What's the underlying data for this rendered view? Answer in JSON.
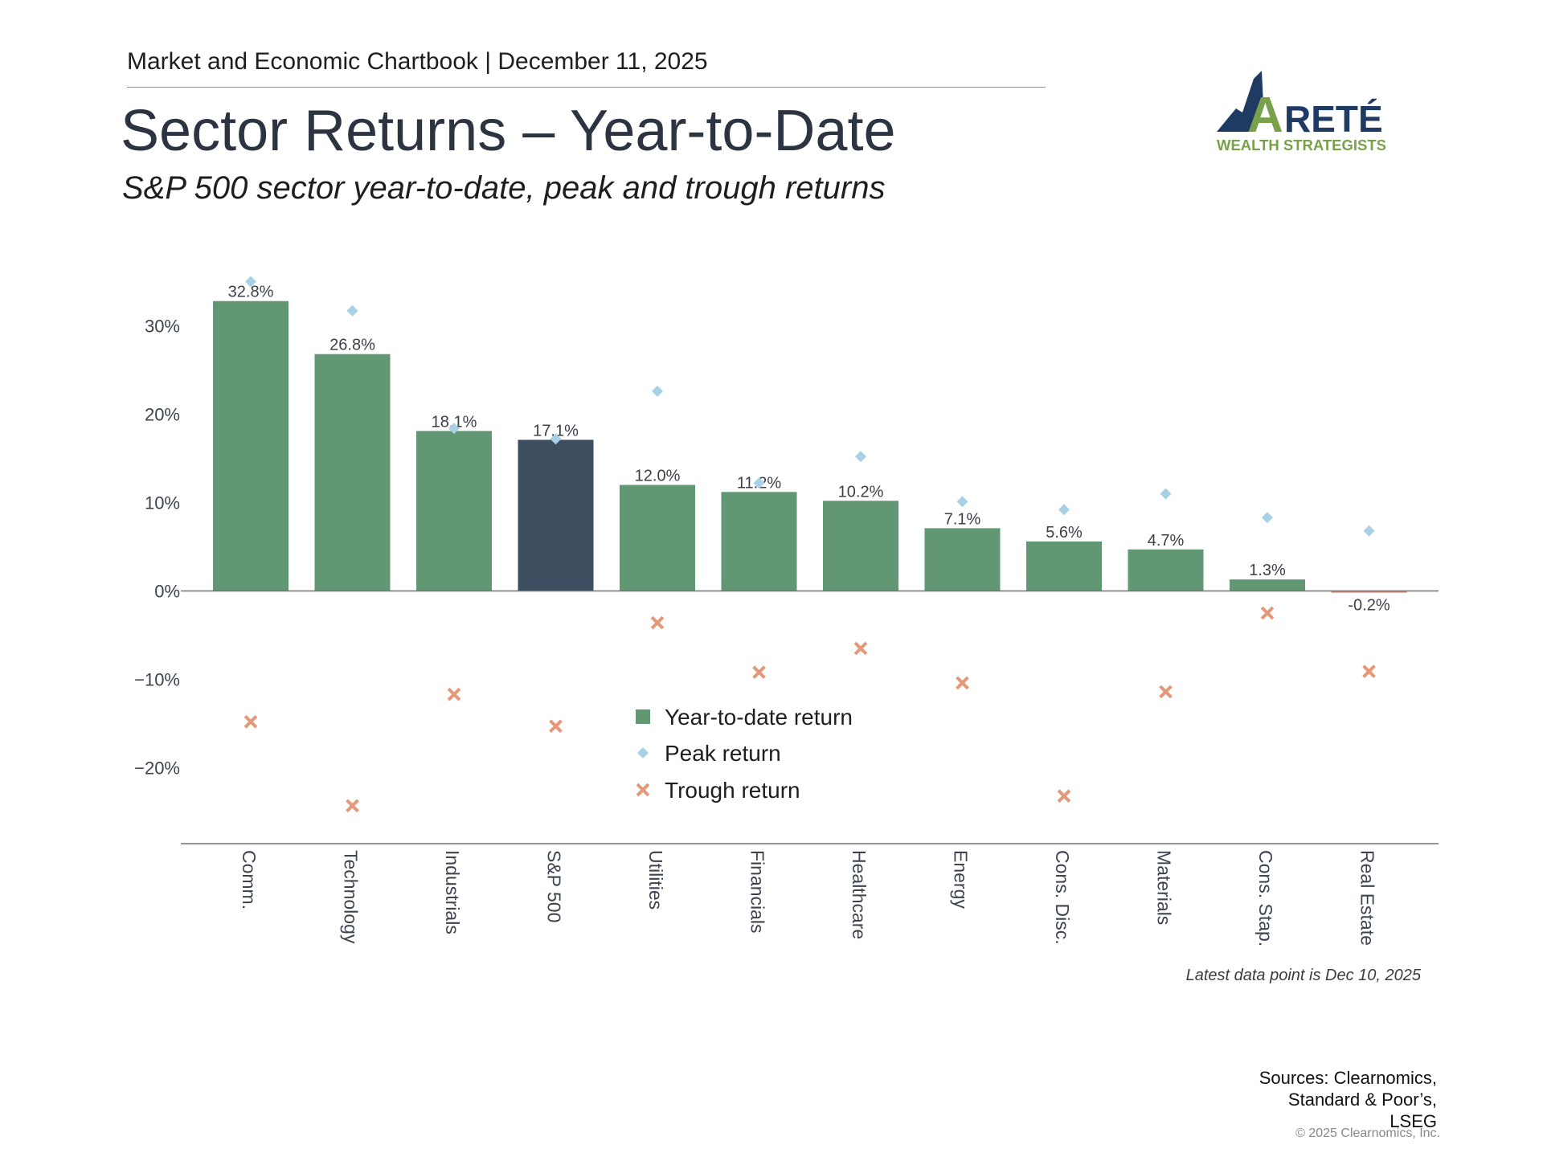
{
  "header": {
    "chartbook": "Market and Economic Chartbook | December 11, 2025",
    "title": "Sector Returns – Year-to-Date",
    "subtitle": "S&P 500 sector year-to-date, peak and trough returns"
  },
  "logo": {
    "wordmark": "RETÉ",
    "tagline": "WEALTH STRATEGISTS",
    "initial": "A",
    "colors": {
      "mountain": "#1f3a63",
      "green": "#79a04a"
    }
  },
  "chart_data": {
    "type": "bar",
    "categories": [
      "Comm.",
      "Technology",
      "Industrials",
      "S&P 500",
      "Utilities",
      "Financials",
      "Healthcare",
      "Energy",
      "Cons. Disc.",
      "Materials",
      "Cons. Stap.",
      "Real Estate"
    ],
    "series": [
      {
        "name": "Year-to-date return",
        "type": "bar",
        "values": [
          32.8,
          26.8,
          18.1,
          17.1,
          12.0,
          11.2,
          10.2,
          7.1,
          5.6,
          4.7,
          1.3,
          -0.2
        ]
      },
      {
        "name": "Peak return",
        "type": "scatter",
        "marker": "diamond",
        "values": [
          35.0,
          31.7,
          18.4,
          17.2,
          22.6,
          12.2,
          15.2,
          10.1,
          9.2,
          11.0,
          8.3,
          6.8
        ]
      },
      {
        "name": "Trough return",
        "type": "scatter",
        "marker": "x",
        "values": [
          -14.8,
          -24.3,
          -11.7,
          -15.3,
          -3.6,
          -9.2,
          -6.5,
          -10.4,
          -23.2,
          -11.4,
          -2.5,
          -9.1
        ]
      }
    ],
    "data_labels": [
      "32.8%",
      "26.8%",
      "18.1%",
      "17.1%",
      "12.0%",
      "11.2%",
      "10.2%",
      "7.1%",
      "5.6%",
      "4.7%",
      "1.3%",
      "-0.2%"
    ],
    "highlight_category": "S&P 500",
    "y_ticks": [
      30,
      20,
      10,
      0,
      -10,
      -20
    ],
    "y_tick_labels": [
      "30%",
      "20%",
      "10%",
      "0%",
      "−10%",
      "−20%"
    ],
    "ylim": [
      -28,
      37
    ],
    "grid": false,
    "legend_position": "center",
    "xlabel": "",
    "ylabel": "",
    "colors": {
      "bar": "#629773",
      "bar_highlight": "#3c4e5f",
      "bar_negative": "#e08878",
      "peak": "#a8d1e6",
      "trough": "#e3987a",
      "axis": "#6f757c"
    }
  },
  "footer": {
    "note": "Latest data point is Dec 10, 2025",
    "sources": [
      "Sources: Clearnomics,",
      "Standard & Poor’s,",
      "LSEG"
    ],
    "copyright": "© 2025 Clearnomics, Inc."
  }
}
